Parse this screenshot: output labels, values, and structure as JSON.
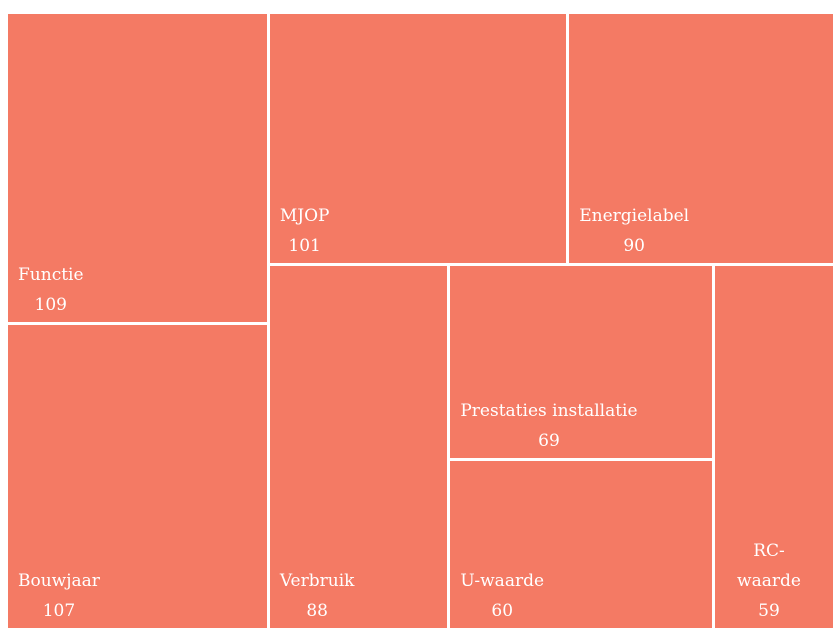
{
  "chart_data": {
    "type": "treemap",
    "categories": [
      "Functie",
      "Bouwjaar",
      "MJOP",
      "Energielabel",
      "Verbruik",
      "Prestaties installatie",
      "U-waarde",
      "RC-waarde"
    ],
    "values": [
      109,
      107,
      101,
      90,
      88,
      69,
      60,
      59
    ],
    "color": "#f47a64"
  }
}
